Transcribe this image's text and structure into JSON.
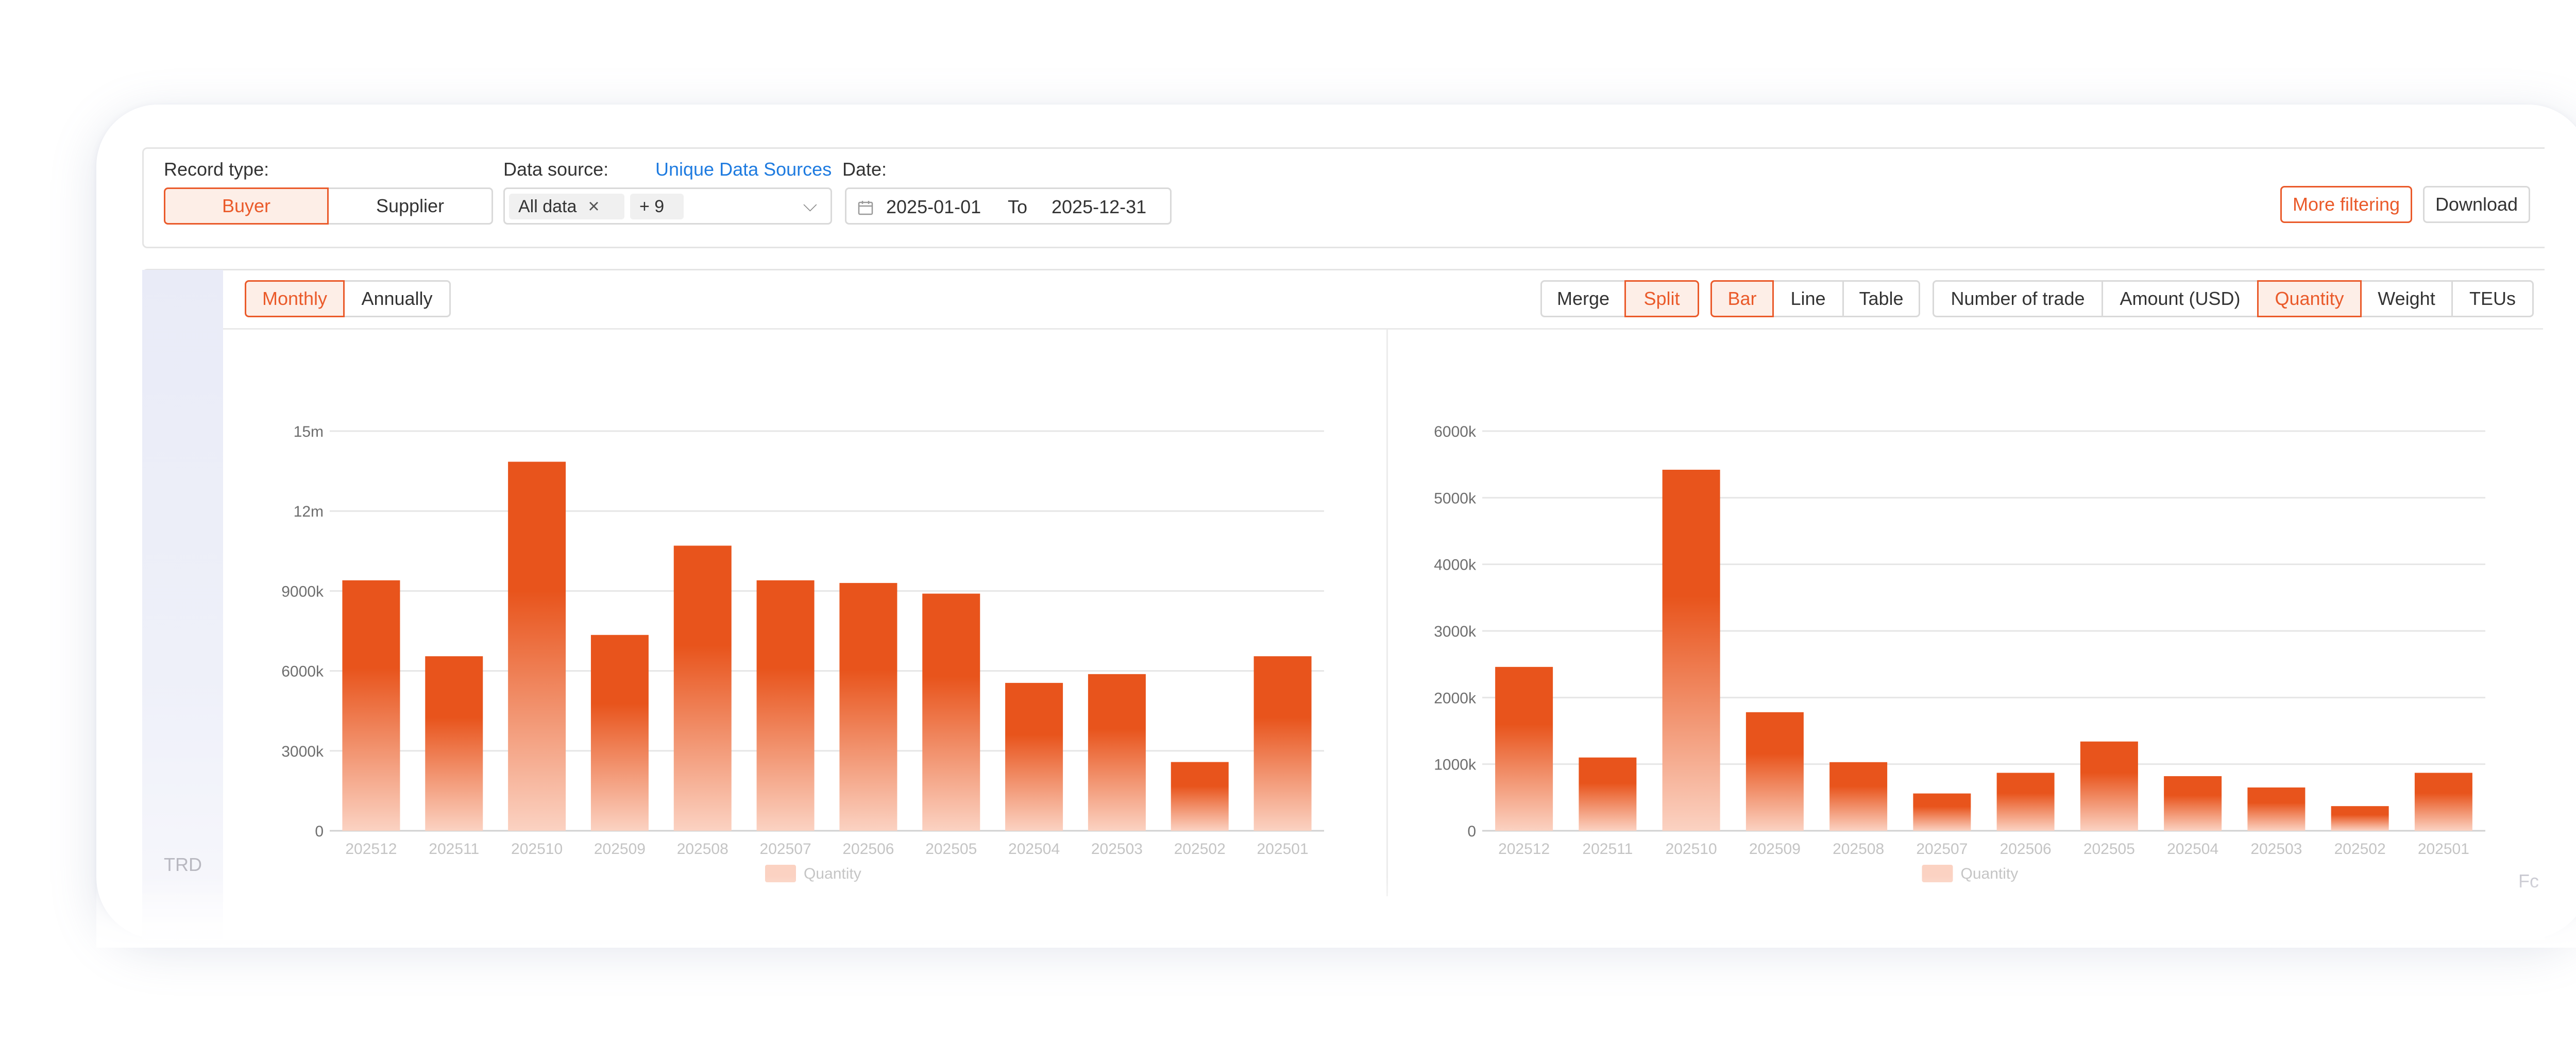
{
  "filters": {
    "record_type_label": "Record type:",
    "record_type_options": [
      "Buyer",
      "Supplier"
    ],
    "record_type_selected": "Buyer",
    "data_source_label": "Data source:",
    "unique_sources_link": "Unique Data Sources",
    "data_source_tags": [
      "All data",
      "+ 9"
    ],
    "tag_close_glyph": "×",
    "chevron_glyph": "⌵",
    "date_label": "Date:",
    "date_from": "2025-01-01",
    "date_to_label": "To",
    "date_to": "2025-12-31",
    "more_filtering": "More filtering",
    "download": "Download"
  },
  "toolbar": {
    "period_options": [
      "Monthly",
      "Annually"
    ],
    "period_selected": "Monthly",
    "merge_split": [
      "Merge",
      "Split"
    ],
    "merge_split_selected": "Split",
    "chart_types": [
      "Bar",
      "Line",
      "Table"
    ],
    "chart_type_selected": "Bar",
    "metrics": [
      "Number of trade",
      "Amount (USD)",
      "Quantity",
      "Weight",
      "TEUs"
    ],
    "metric_selected": "Quantity"
  },
  "side_label": "TRD",
  "corner_label": "Fc",
  "colors": {
    "accent": "#ea5a2a",
    "accent_light": "#fdeee7",
    "link": "#1e7be0",
    "bar_top": "#e8541c",
    "bar_bottom": "#fbd2c2"
  },
  "chart_data": [
    {
      "type": "bar",
      "categories": [
        "202512",
        "202511",
        "202510",
        "202509",
        "202508",
        "202507",
        "202506",
        "202505",
        "202504",
        "202503",
        "202502",
        "202501"
      ],
      "series": [
        {
          "name": "Quantity",
          "values": [
            9400000,
            6550000,
            13850000,
            7350000,
            10700000,
            9400000,
            9300000,
            8900000,
            5550000,
            5880000,
            2580000,
            6550000
          ]
        }
      ],
      "yticks": [
        "0",
        "3000k",
        "6000k",
        "9000k",
        "12m",
        "15m"
      ],
      "ylim": [
        0,
        15000000
      ],
      "legend": "bottom",
      "grid": true
    },
    {
      "type": "bar",
      "categories": [
        "202512",
        "202511",
        "202510",
        "202509",
        "202508",
        "202507",
        "202506",
        "202505",
        "202504",
        "202503",
        "202502",
        "202501"
      ],
      "series": [
        {
          "name": "Quantity",
          "values": [
            2460000,
            1100000,
            5420000,
            1780000,
            1030000,
            560000,
            870000,
            1340000,
            820000,
            650000,
            370000,
            870000
          ]
        }
      ],
      "yticks": [
        "0",
        "1000k",
        "2000k",
        "3000k",
        "4000k",
        "5000k",
        "6000k"
      ],
      "ylim": [
        0,
        6000000
      ],
      "legend": "bottom",
      "grid": true
    }
  ]
}
